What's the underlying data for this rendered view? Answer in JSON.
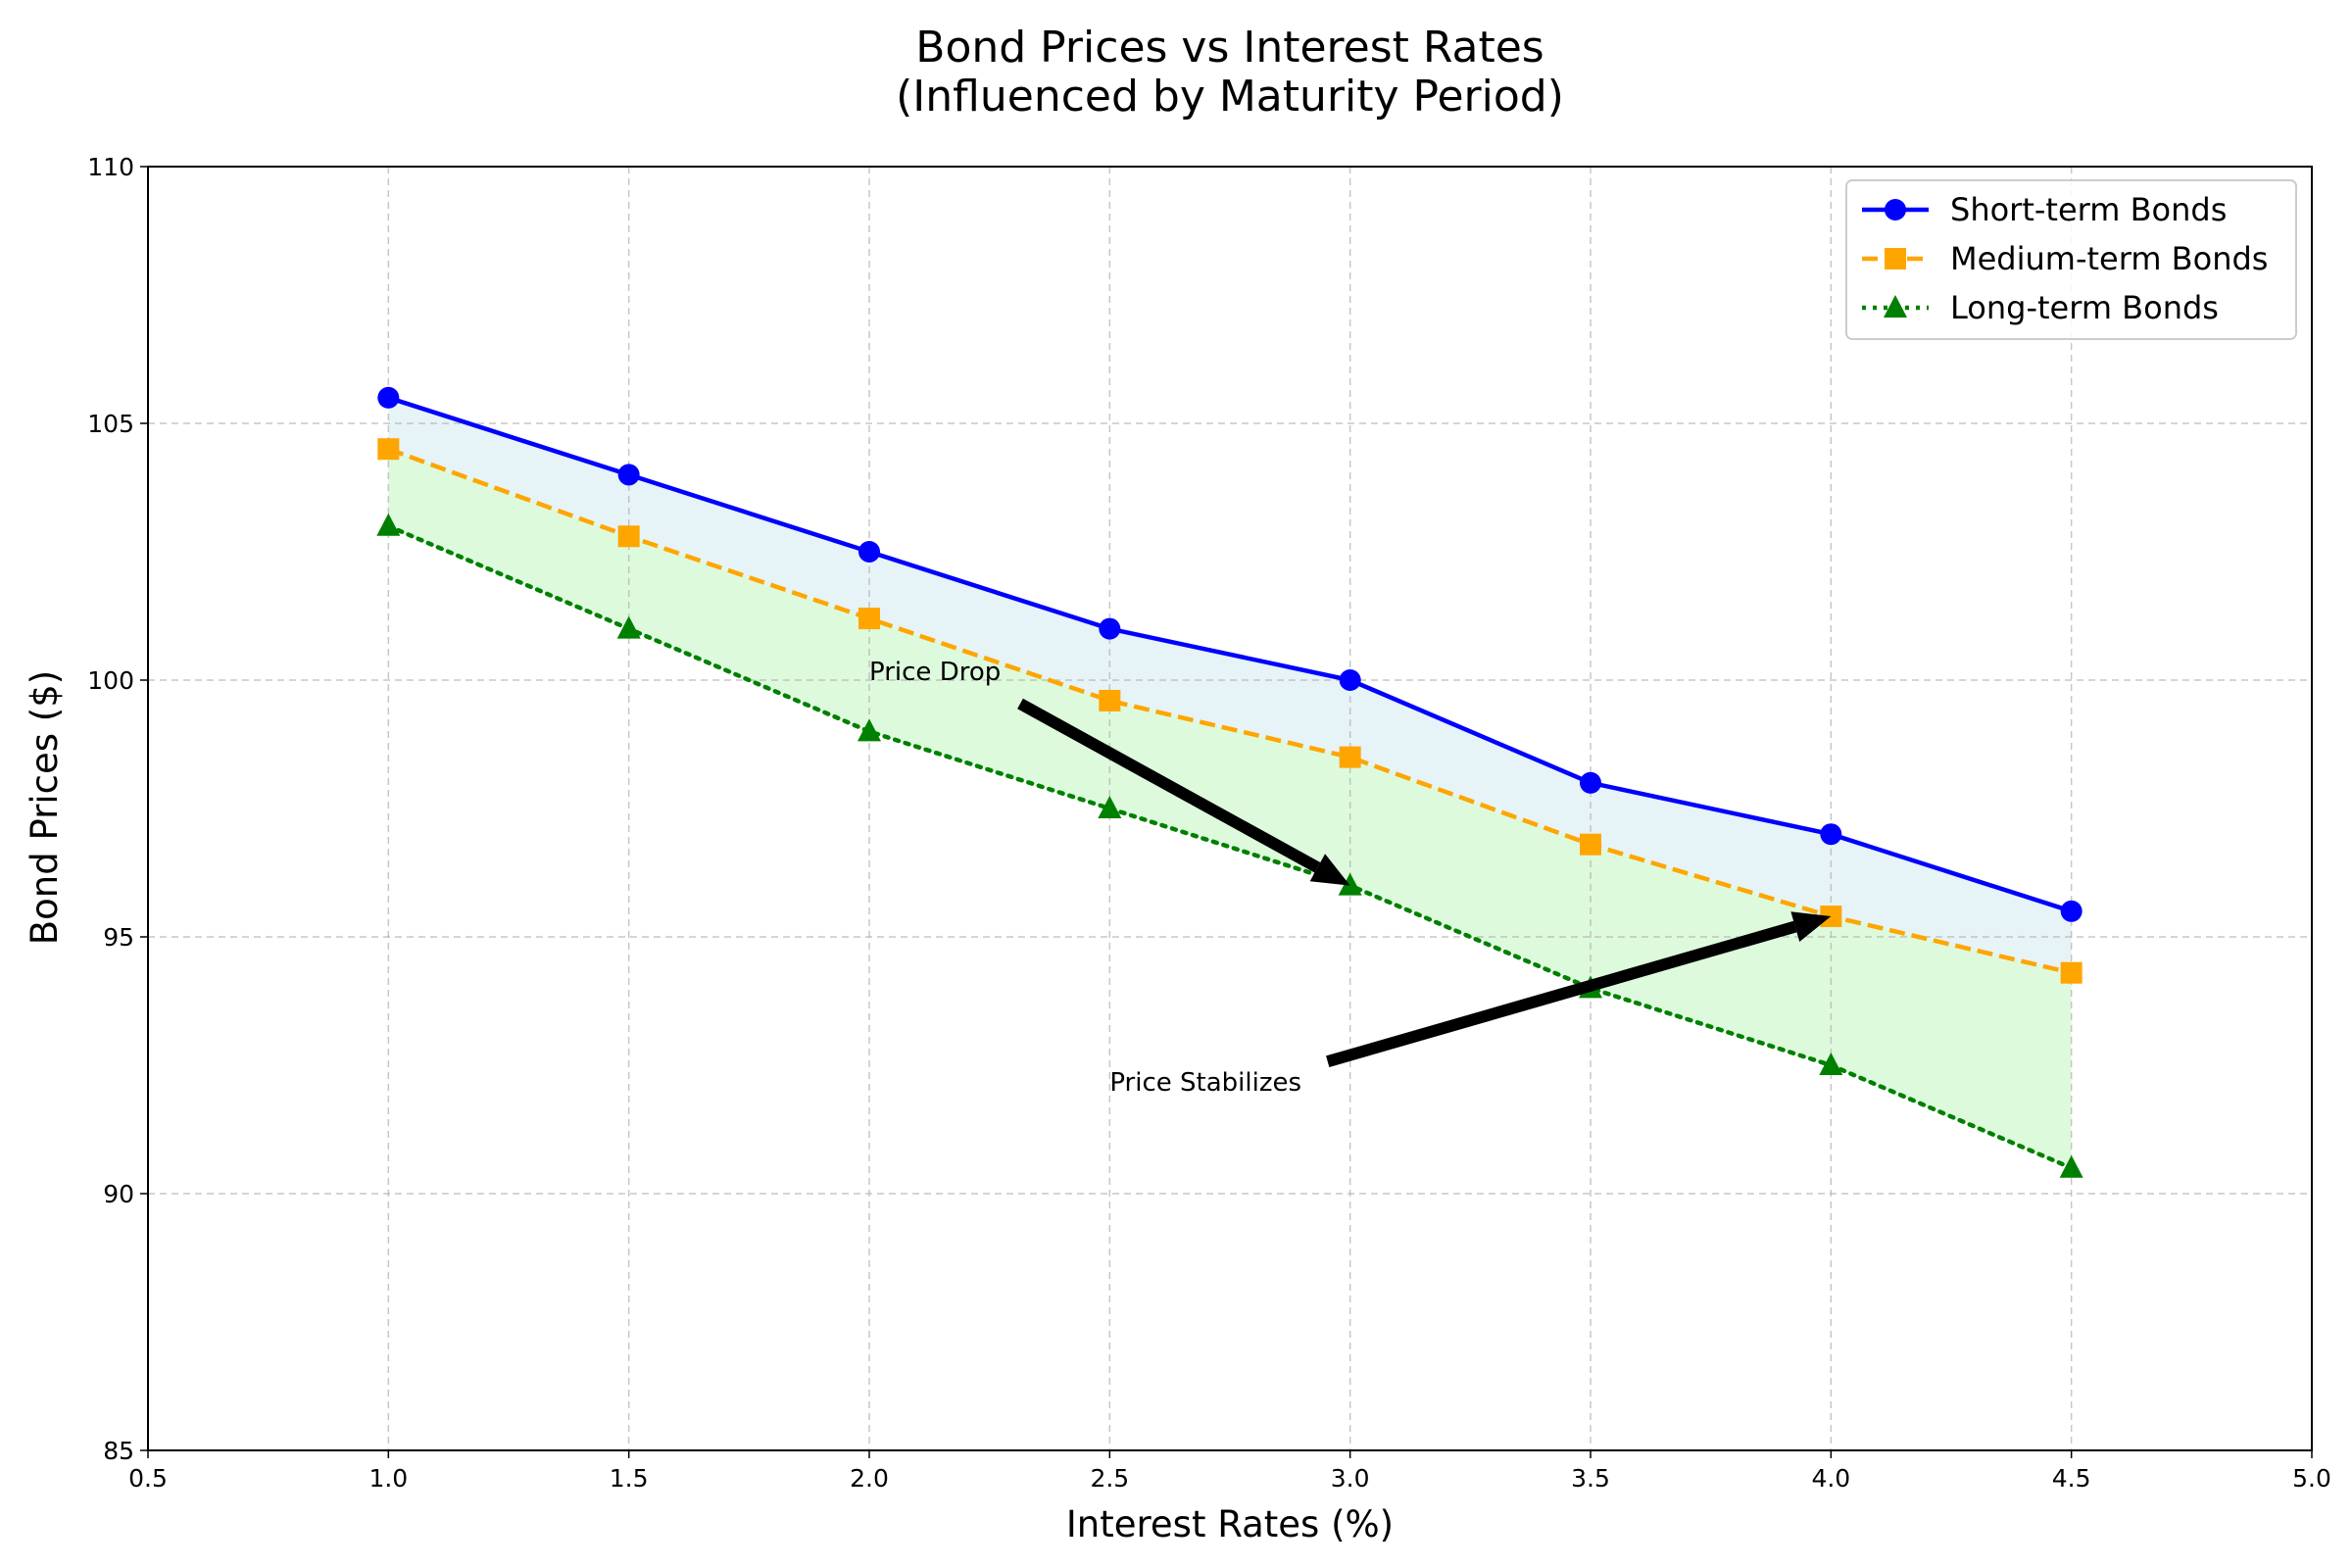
{
  "chart_data": {
    "type": "line",
    "title": "Bond Prices vs Interest Rates",
    "subtitle": "(Influenced by Maturity Period)",
    "xlabel": "Interest Rates (%)",
    "ylabel": "Bond Prices ($)",
    "xlim": [
      0.5,
      5.0
    ],
    "ylim": [
      85,
      110
    ],
    "xticks": [
      0.5,
      1.0,
      1.5,
      2.0,
      2.5,
      3.0,
      3.5,
      4.0,
      4.5,
      5.0
    ],
    "yticks": [
      85,
      90,
      95,
      100,
      105,
      110
    ],
    "xtick_labels": [
      "0.5",
      "1.0",
      "1.5",
      "2.0",
      "2.5",
      "3.0",
      "3.5",
      "4.0",
      "4.5",
      "5.0"
    ],
    "ytick_labels": [
      "85",
      "90",
      "95",
      "100",
      "105",
      "110"
    ],
    "grid": true,
    "legend_position": "top-right",
    "x": [
      1.0,
      1.5,
      2.0,
      2.5,
      3.0,
      3.5,
      4.0,
      4.5
    ],
    "series": [
      {
        "name": "Short-term Bonds",
        "values": [
          105.5,
          104.0,
          102.5,
          101.0,
          100.0,
          98.0,
          97.0,
          95.5
        ],
        "color": "#0000ff",
        "line_style": "solid",
        "marker": "circle"
      },
      {
        "name": "Medium-term Bonds",
        "values": [
          104.5,
          102.8,
          101.2,
          99.6,
          98.5,
          96.8,
          95.4,
          94.3
        ],
        "color": "#ffa500",
        "line_style": "dashed",
        "marker": "square"
      },
      {
        "name": "Long-term Bonds",
        "values": [
          103.0,
          101.0,
          99.0,
          97.5,
          96.0,
          94.0,
          92.5,
          90.5
        ],
        "color": "#008000",
        "line_style": "dotted",
        "marker": "triangle"
      }
    ],
    "fills": [
      {
        "between": [
          "Short-term Bonds",
          "Medium-term Bonds"
        ],
        "color": "#add8e6",
        "opacity": 0.3
      },
      {
        "between": [
          "Medium-term Bonds",
          "Long-term Bonds"
        ],
        "color": "#90ee90",
        "opacity": 0.3
      }
    ],
    "annotations": [
      {
        "text": "Price Drop",
        "text_x": 2.0,
        "text_y": 100.0,
        "arrow_to_x": 3.0,
        "arrow_to_y": 96.0
      },
      {
        "text": "Price Stabilizes",
        "text_x": 2.5,
        "text_y": 92.0,
        "arrow_to_x": 4.0,
        "arrow_to_y": 95.4
      }
    ]
  }
}
